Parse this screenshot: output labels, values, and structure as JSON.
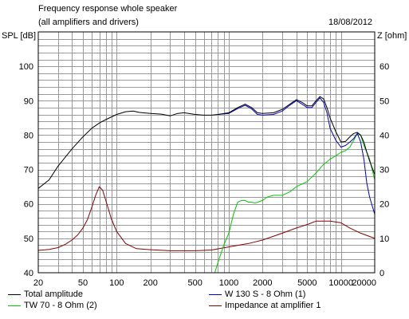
{
  "header": {
    "title": "Frequency response whole speaker",
    "subtitle": "(all amplifiers and drivers)",
    "date": "18/08/2012"
  },
  "chart_data": {
    "type": "line",
    "xscale": "log",
    "xlim": [
      20,
      20000
    ],
    "ylim": [
      40,
      110
    ],
    "y2lim": [
      0,
      70
    ],
    "grid": true,
    "ylabel": "SPL [dB]",
    "y2label": "Z [ohm]",
    "x_ticks": [
      {
        "v": 20,
        "label": "20"
      },
      {
        "v": 50,
        "label": "50"
      },
      {
        "v": 100,
        "label": "100"
      },
      {
        "v": 200,
        "label": "200"
      },
      {
        "v": 500,
        "label": "500"
      },
      {
        "v": 1000,
        "label": "1000"
      },
      {
        "v": 2000,
        "label": "2000"
      },
      {
        "v": 5000,
        "label": "5000"
      },
      {
        "v": 10000,
        "label": "10000"
      },
      {
        "v": 20000,
        "label": "20000"
      }
    ],
    "y_ticks": [
      "40",
      "50",
      "60",
      "70",
      "80",
      "90",
      "100"
    ],
    "y2_ticks": [
      "0",
      "10",
      "20",
      "30",
      "40",
      "50",
      "60"
    ],
    "legend": [
      {
        "name": "Total amplitude",
        "color": "#000000"
      },
      {
        "name": "W 130 S - 8 Ohm (1)",
        "color": "#0000c8"
      },
      {
        "name": "TW 70 - 8 Ohm (2)",
        "color": "#00c800"
      },
      {
        "name": "Impedance at amplifier 1",
        "color": "#8b0000"
      }
    ],
    "series": [
      {
        "name": "Total amplitude",
        "axis": "left",
        "color": "#000000",
        "points": [
          [
            20,
            64.5
          ],
          [
            25,
            67
          ],
          [
            30,
            71
          ],
          [
            40,
            76
          ],
          [
            50,
            79.5
          ],
          [
            60,
            82
          ],
          [
            70,
            83.5
          ],
          [
            80,
            84.5
          ],
          [
            100,
            86
          ],
          [
            120,
            86.8
          ],
          [
            140,
            87
          ],
          [
            160,
            86.6
          ],
          [
            200,
            86.3
          ],
          [
            250,
            86.1
          ],
          [
            300,
            85.6
          ],
          [
            350,
            86.3
          ],
          [
            400,
            86.5
          ],
          [
            500,
            86
          ],
          [
            600,
            85.8
          ],
          [
            700,
            85.8
          ],
          [
            800,
            86
          ],
          [
            1000,
            86.5
          ],
          [
            1200,
            88
          ],
          [
            1400,
            89
          ],
          [
            1600,
            88
          ],
          [
            1800,
            86.5
          ],
          [
            2000,
            86.3
          ],
          [
            2500,
            86.5
          ],
          [
            3000,
            87.5
          ],
          [
            3500,
            89
          ],
          [
            4000,
            90.3
          ],
          [
            4500,
            89.5
          ],
          [
            5000,
            88.5
          ],
          [
            5500,
            88.5
          ],
          [
            6000,
            90
          ],
          [
            6500,
            91.2
          ],
          [
            7000,
            90.5
          ],
          [
            7500,
            88
          ],
          [
            8000,
            85
          ],
          [
            9000,
            81
          ],
          [
            10000,
            78
          ],
          [
            11000,
            78.2
          ],
          [
            12000,
            79.5
          ],
          [
            13000,
            80.5
          ],
          [
            14000,
            80.8
          ],
          [
            15000,
            80
          ],
          [
            16000,
            78
          ],
          [
            17000,
            75
          ],
          [
            18000,
            72.5
          ],
          [
            20000,
            68.5
          ]
        ]
      },
      {
        "name": "W 130 S - 8 Ohm (1)",
        "axis": "left",
        "color": "#0000c8",
        "points": [
          [
            800,
            86
          ],
          [
            1000,
            86.3
          ],
          [
            1200,
            87.7
          ],
          [
            1400,
            88.7
          ],
          [
            1600,
            87.6
          ],
          [
            1800,
            86
          ],
          [
            2000,
            85.8
          ],
          [
            2500,
            86
          ],
          [
            3000,
            87
          ],
          [
            3500,
            88.7
          ],
          [
            4000,
            90
          ],
          [
            4500,
            89
          ],
          [
            5000,
            88
          ],
          [
            5500,
            88
          ],
          [
            6000,
            89.5
          ],
          [
            6500,
            90.8
          ],
          [
            7000,
            89.5
          ],
          [
            7500,
            86.5
          ],
          [
            8000,
            82
          ],
          [
            9000,
            78.5
          ],
          [
            10000,
            76.5
          ],
          [
            11000,
            77
          ],
          [
            12000,
            78
          ],
          [
            13000,
            79
          ],
          [
            14000,
            80.5
          ],
          [
            15000,
            78
          ],
          [
            16000,
            73
          ],
          [
            17000,
            66
          ],
          [
            18000,
            62
          ],
          [
            20000,
            57
          ]
        ]
      },
      {
        "name": "TW 70 - 8 Ohm (2)",
        "axis": "left",
        "color": "#00c800",
        "points": [
          [
            750,
            40
          ],
          [
            800,
            43
          ],
          [
            900,
            48
          ],
          [
            1000,
            51.5
          ],
          [
            1100,
            57
          ],
          [
            1200,
            60.5
          ],
          [
            1300,
            61
          ],
          [
            1400,
            61
          ],
          [
            1500,
            60.5
          ],
          [
            1600,
            60.5
          ],
          [
            1700,
            60.3
          ],
          [
            1800,
            60.5
          ],
          [
            2000,
            61
          ],
          [
            2200,
            62
          ],
          [
            2500,
            62.5
          ],
          [
            2800,
            62.5
          ],
          [
            3000,
            62.5
          ],
          [
            3500,
            63.5
          ],
          [
            4000,
            65
          ],
          [
            5000,
            66.5
          ],
          [
            6000,
            69
          ],
          [
            7000,
            71.5
          ],
          [
            8000,
            73
          ],
          [
            9000,
            74
          ],
          [
            10000,
            75
          ],
          [
            11000,
            75.5
          ],
          [
            12000,
            76.5
          ],
          [
            13000,
            78.5
          ],
          [
            14000,
            80.5
          ],
          [
            15000,
            80
          ],
          [
            16000,
            77
          ],
          [
            17000,
            75
          ],
          [
            18000,
            73
          ],
          [
            20000,
            67
          ]
        ]
      },
      {
        "name": "Impedance at amplifier 1",
        "axis": "right",
        "color": "#8b0000",
        "points": [
          [
            20,
            6.5
          ],
          [
            25,
            6.8
          ],
          [
            30,
            7.3
          ],
          [
            35,
            8.3
          ],
          [
            40,
            9.5
          ],
          [
            45,
            11
          ],
          [
            50,
            13
          ],
          [
            55,
            15.5
          ],
          [
            60,
            19
          ],
          [
            65,
            22.5
          ],
          [
            70,
            25
          ],
          [
            75,
            24
          ],
          [
            80,
            21
          ],
          [
            90,
            15.5
          ],
          [
            100,
            12
          ],
          [
            120,
            8.5
          ],
          [
            150,
            7
          ],
          [
            200,
            6.7
          ],
          [
            300,
            6.4
          ],
          [
            400,
            6.4
          ],
          [
            500,
            6.4
          ],
          [
            700,
            6.6
          ],
          [
            1000,
            7.5
          ],
          [
            1500,
            8.5
          ],
          [
            2000,
            9.5
          ],
          [
            3000,
            11.5
          ],
          [
            4000,
            13
          ],
          [
            5000,
            14
          ],
          [
            6000,
            15
          ],
          [
            7000,
            15
          ],
          [
            8000,
            15
          ],
          [
            10000,
            14.5
          ],
          [
            12000,
            13
          ],
          [
            15000,
            11.5
          ],
          [
            20000,
            10
          ]
        ]
      }
    ]
  }
}
